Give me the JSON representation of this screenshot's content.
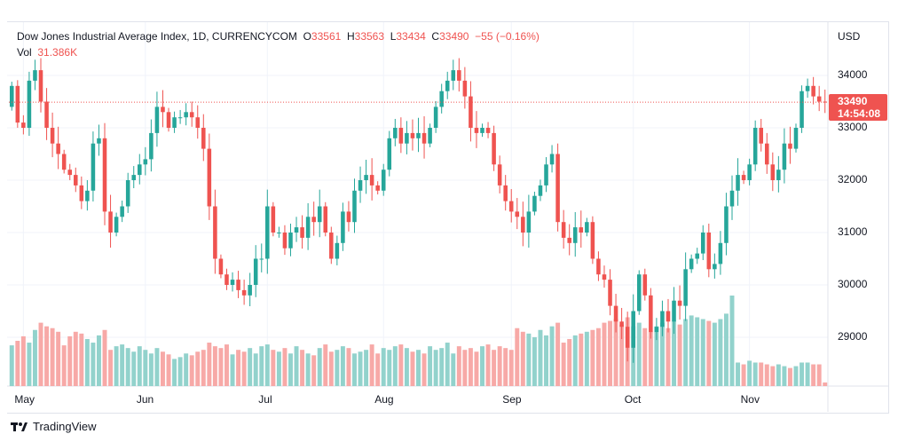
{
  "legend": {
    "title": "Dow Jones Industrial Average Index, 1D, CURRENCYCOM",
    "o_label": "O",
    "o": "33561",
    "h_label": "H",
    "h": "33563",
    "l_label": "L",
    "l": "33434",
    "c_label": "C",
    "c": "33490",
    "change": "−55 (−0.16%)",
    "vol_label": "Vol",
    "vol": "31.386K"
  },
  "price_tag": {
    "price": "33490",
    "countdown": "14:54:08"
  },
  "brand": "TradingView",
  "colors": {
    "up": "#26a69a",
    "down": "#ef5350",
    "vol_up": "#92d2cc",
    "vol_down": "#f7a9a7"
  },
  "chart_data": {
    "type": "candlestick",
    "title": "Dow Jones Industrial Average Index, 1D, CURRENCYCOM",
    "currency": "USD",
    "ylim": [
      28200,
      34900
    ],
    "yticks": [
      {
        "v": 34000,
        "label": "34000"
      },
      {
        "v": 33000,
        "label": "33000"
      },
      {
        "v": 32000,
        "label": "32000"
      },
      {
        "v": 31000,
        "label": "31000"
      },
      {
        "v": 30000,
        "label": "30000"
      },
      {
        "v": 29000,
        "label": "29000"
      }
    ],
    "xticks": [
      {
        "i": 2,
        "label": "May"
      },
      {
        "i": 23,
        "label": "Jun"
      },
      {
        "i": 44,
        "label": "Jul"
      },
      {
        "i": 64,
        "label": "Aug"
      },
      {
        "i": 86,
        "label": "Sep"
      },
      {
        "i": 107,
        "label": "Oct"
      },
      {
        "i": 127,
        "label": "Nov"
      }
    ],
    "first_open": 33400,
    "close": [
      33800,
      33100,
      33000,
      33900,
      34100,
      33500,
      33000,
      32700,
      32500,
      32200,
      32100,
      31900,
      31600,
      31800,
      32700,
      32800,
      31400,
      31000,
      31300,
      31500,
      32000,
      32100,
      32300,
      32400,
      32900,
      33400,
      33300,
      33000,
      33200,
      33200,
      33300,
      33200,
      33000,
      32600,
      31500,
      30500,
      30200,
      30000,
      30100,
      29900,
      29800,
      30000,
      30500,
      30500,
      31500,
      31000,
      31000,
      30700,
      31000,
      31100,
      30900,
      31300,
      31200,
      31500,
      31000,
      30500,
      30800,
      31400,
      31200,
      31800,
      32000,
      32100,
      31900,
      31800,
      32200,
      32800,
      33000,
      32700,
      32900,
      32800,
      32900,
      32700,
      33000,
      33400,
      33700,
      33900,
      34100,
      33900,
      33600,
      33000,
      32900,
      33000,
      32900,
      32300,
      31900,
      31600,
      31400,
      31300,
      31000,
      31400,
      31700,
      31900,
      32300,
      32500,
      31200,
      30900,
      30800,
      31100,
      31000,
      31200,
      30500,
      30200,
      30100,
      29600,
      29300,
      29200,
      28800,
      29500,
      30200,
      29800,
      29100,
      29200,
      29500,
      29300,
      29700,
      29600,
      30300,
      30500,
      30600,
      31000,
      30300,
      30400,
      30800,
      31500,
      31800,
      32100,
      32000,
      32300,
      33000,
      32700,
      32300,
      32000,
      32200,
      32700,
      32600,
      33000,
      33700,
      33800,
      33600,
      33500,
      33490
    ],
    "volume_relative": [
      45,
      50,
      55,
      48,
      62,
      70,
      66,
      64,
      60,
      45,
      55,
      60,
      58,
      52,
      48,
      56,
      62,
      40,
      44,
      46,
      42,
      38,
      44,
      40,
      36,
      42,
      38,
      35,
      30,
      32,
      36,
      34,
      38,
      40,
      48,
      44,
      42,
      46,
      35,
      40,
      38,
      42,
      36,
      44,
      46,
      40,
      38,
      42,
      36,
      44,
      40,
      36,
      34,
      42,
      46,
      38,
      40,
      44,
      42,
      36,
      38,
      40,
      46,
      36,
      42,
      40,
      44,
      46,
      42,
      38,
      40,
      36,
      44,
      40,
      42,
      48,
      36,
      44,
      40,
      42,
      38,
      44,
      46,
      40,
      44,
      42,
      40,
      64,
      60,
      58,
      54,
      62,
      56,
      66,
      70,
      48,
      52,
      56,
      58,
      60,
      62,
      64,
      70,
      72,
      74,
      68,
      76,
      66,
      70,
      64,
      60,
      66,
      70,
      64,
      72,
      68,
      74,
      78,
      76,
      74,
      72,
      70,
      74,
      80,
      100,
      26,
      24,
      28,
      26,
      26,
      24,
      22,
      24,
      22,
      20,
      22,
      26,
      26,
      24,
      24,
      4
    ]
  }
}
